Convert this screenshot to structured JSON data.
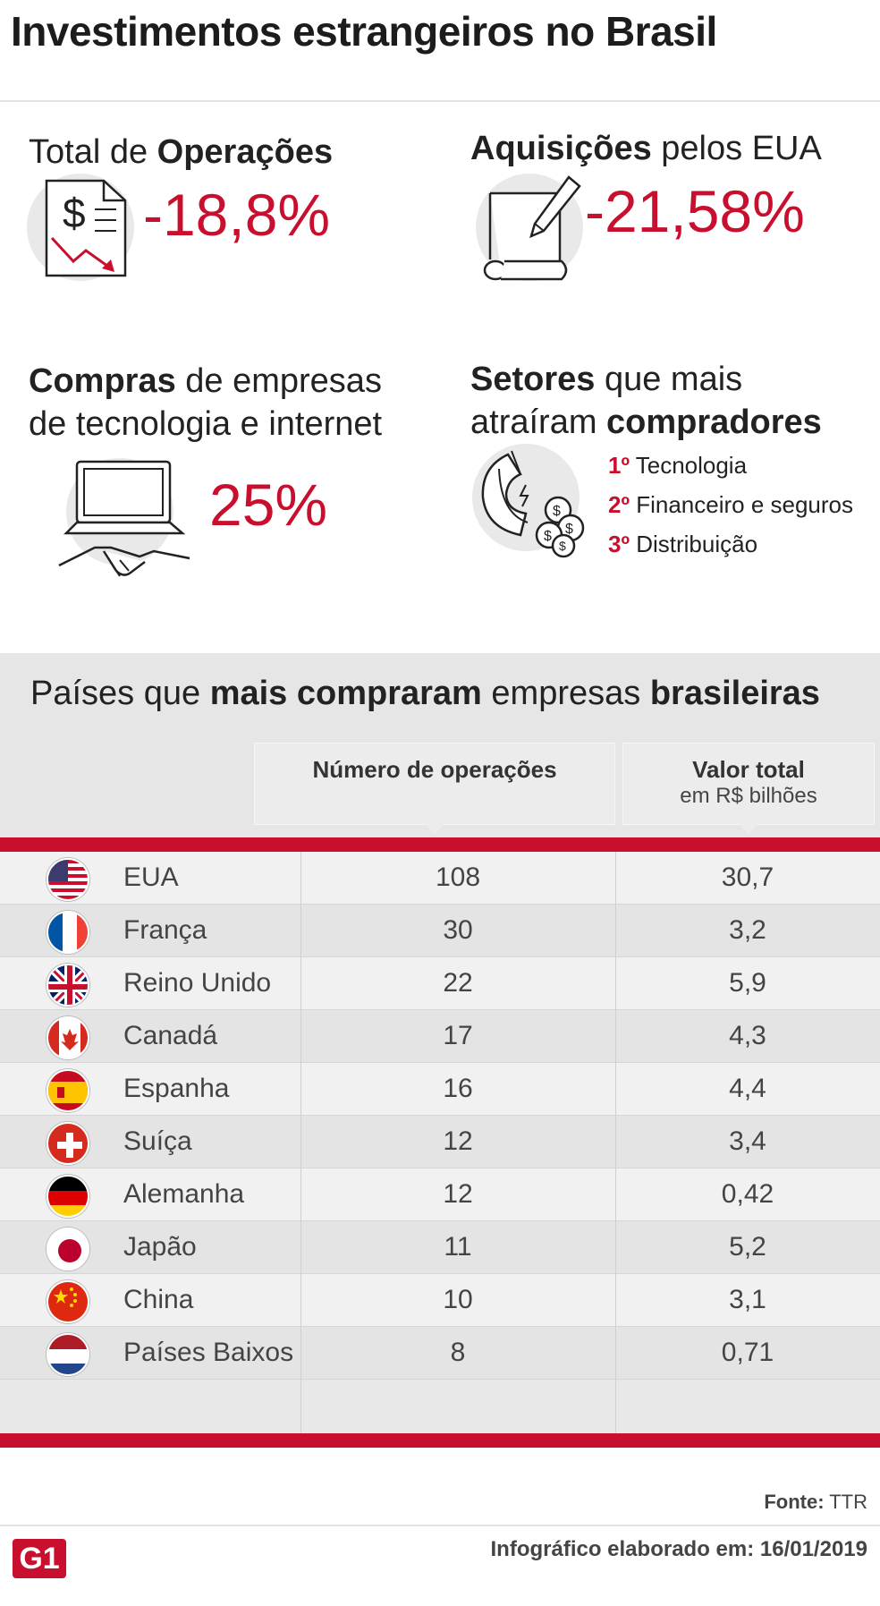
{
  "title": "Investimentos estrangeiros no Brasil",
  "stats": {
    "operacoes": {
      "head_plain": "Total de ",
      "head_bold": "Operações",
      "value": "-18,8%"
    },
    "aquisicoes": {
      "head_bold": "Aquisições",
      "head_plain": " pelos EUA",
      "value": "-21,58%"
    },
    "compras": {
      "head_bold": "Compras",
      "head_plain": " de empresas",
      "head_line2": "de tecnologia e internet",
      "value": "25%"
    },
    "setores": {
      "head_bold": "Setores",
      "head_plain": " que mais",
      "head_line2_plain": "atraíram ",
      "head_line2_bold": "compradores",
      "items": [
        {
          "rank": "1º",
          "label": "Tecnologia"
        },
        {
          "rank": "2º",
          "label": "Financeiro e seguros"
        },
        {
          "rank": "3º",
          "label": "Distribuição"
        }
      ]
    }
  },
  "table": {
    "title_plain1": "Países que ",
    "title_bold1": "mais compraram",
    "title_plain2": " empresas ",
    "title_bold2": "brasileiras",
    "col_ops": "Número de operações",
    "col_val": "Valor total",
    "col_val_sub": "em R$ bilhões"
  },
  "chart_data": {
    "type": "table",
    "columns": [
      "Número de operações",
      "Valor total em R$ bilhões"
    ],
    "rows": [
      {
        "country": "EUA",
        "ops": "108",
        "value": "30,7"
      },
      {
        "country": "França",
        "ops": "30",
        "value": "3,2"
      },
      {
        "country": "Reino Unido",
        "ops": "22",
        "value": "5,9"
      },
      {
        "country": "Canadá",
        "ops": "17",
        "value": "4,3"
      },
      {
        "country": "Espanha",
        "ops": "16",
        "value": "4,4"
      },
      {
        "country": "Suíça",
        "ops": "12",
        "value": "3,4"
      },
      {
        "country": "Alemanha",
        "ops": "12",
        "value": "0,42"
      },
      {
        "country": "Japão",
        "ops": "11",
        "value": "5,2"
      },
      {
        "country": "China",
        "ops": "10",
        "value": "3,1"
      },
      {
        "country": "Países Baixos",
        "ops": "8",
        "value": "0,71"
      }
    ]
  },
  "footer": {
    "source_label": "Fonte:",
    "source_value": "TTR",
    "credit": "Infográfico elaborado em: 16/01/2019",
    "logo": "G1"
  },
  "colors": {
    "accent": "#c8102e",
    "text": "#222222",
    "table_bg": "#e6e6e6"
  }
}
